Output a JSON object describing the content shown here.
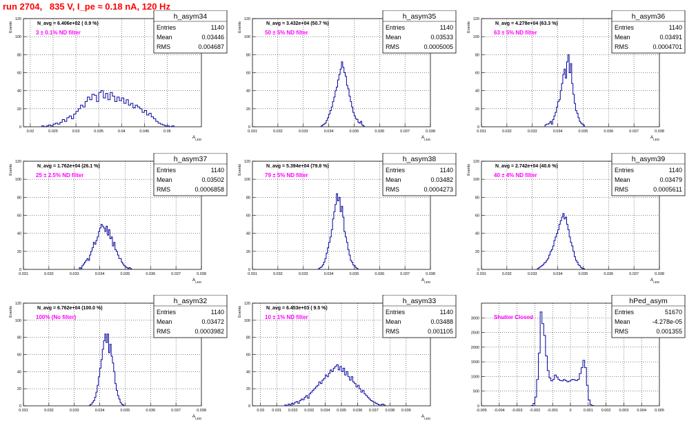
{
  "canvas_title": "run 2704,   835 V, I_pe ≈ 0.18 nA, 120 Hz",
  "chart_data": [
    {
      "type": "histogram",
      "name": "h_asym34",
      "stats": {
        "entries": "1140",
        "mean": "0.03446",
        "rms": "0.004687"
      },
      "stats_labels": [
        "Entries",
        "Mean",
        "RMS"
      ],
      "header": "N_avg = 6.406e+02 ( 0.9 %)",
      "annotation": "3 ± 0.1% ND filter",
      "xlabel": "A_LED",
      "ylabel": "Events",
      "xlim": [
        0.0185,
        0.0575
      ],
      "ylim": [
        0,
        120
      ],
      "xticks": [
        0.02,
        0.025,
        0.03,
        0.035,
        0.04,
        0.045,
        0.05
      ],
      "xtick_labels": [
        "0.02",
        "0.025",
        "0.03",
        "0.035",
        "0.04",
        "0.045",
        "0.05"
      ],
      "yticks": [
        0,
        20,
        40,
        60,
        80,
        100,
        120
      ],
      "grid": true,
      "bin_x0": 0.0225,
      "bin_width": 0.0005,
      "counts": [
        1,
        0,
        1,
        2,
        1,
        3,
        4,
        3,
        5,
        8,
        6,
        10,
        12,
        9,
        14,
        17,
        20,
        24,
        22,
        28,
        33,
        30,
        36,
        35,
        28,
        38,
        40,
        32,
        37,
        30,
        38,
        34,
        28,
        33,
        29,
        32,
        26,
        30,
        24,
        26,
        21,
        24,
        22,
        20,
        16,
        18,
        13,
        15,
        11,
        9,
        6,
        4,
        3,
        2,
        1,
        1,
        0,
        1
      ]
    },
    {
      "type": "histogram",
      "name": "h_asym35",
      "stats": {
        "entries": "1140",
        "mean": "0.03533",
        "rms": "0.0005005"
      },
      "stats_labels": [
        "Entries",
        "Mean",
        "RMS"
      ],
      "header": "N_avg = 3.432e+04 (50.7 %)",
      "annotation": "50 ± 5% ND filter",
      "xlabel": "A_LED",
      "ylabel": "Events",
      "xlim": [
        0.031,
        0.038
      ],
      "ylim": [
        0,
        120
      ],
      "xticks": [
        0.031,
        0.032,
        0.033,
        0.034,
        0.035,
        0.036,
        0.037,
        0.038
      ],
      "xtick_labels": [
        "0.031",
        "0.032",
        "0.033",
        "0.034",
        "0.035",
        "0.036",
        "0.037",
        "0.038"
      ],
      "yticks": [
        0,
        20,
        40,
        60,
        80,
        100,
        120
      ],
      "grid": true,
      "bin_x0": 0.0337,
      "bin_width": 5e-05,
      "counts": [
        1,
        2,
        3,
        4,
        7,
        10,
        14,
        18,
        22,
        28,
        33,
        40,
        44,
        52,
        58,
        64,
        72,
        66,
        60,
        56,
        46,
        42,
        34,
        28,
        22,
        16,
        12,
        9,
        8,
        5,
        4,
        6,
        2,
        1
      ]
    },
    {
      "type": "histogram",
      "name": "h_asym36",
      "stats": {
        "entries": "1140",
        "mean": "0.03491",
        "rms": "0.0004701"
      },
      "stats_labels": [
        "Entries",
        "Mean",
        "RMS"
      ],
      "header": "N_avg = 4.278e+04 (63.3 %)",
      "annotation": "63 ± 5% ND filter",
      "xlabel": "A_LED",
      "ylabel": "Events",
      "xlim": [
        0.031,
        0.038
      ],
      "ylim": [
        0,
        120
      ],
      "xticks": [
        0.031,
        0.032,
        0.033,
        0.034,
        0.035,
        0.036,
        0.037,
        0.038
      ],
      "xtick_labels": [
        "0.031",
        "0.032",
        "0.033",
        "0.034",
        "0.035",
        "0.036",
        "0.037",
        "0.038"
      ],
      "yticks": [
        0,
        20,
        40,
        60,
        80,
        100,
        120
      ],
      "grid": true,
      "bin_x0": 0.0335,
      "bin_width": 5e-05,
      "counts": [
        2,
        3,
        3,
        4,
        6,
        3,
        8,
        12,
        16,
        22,
        28,
        30,
        40,
        48,
        58,
        64,
        54,
        72,
        80,
        60,
        70,
        48,
        36,
        26,
        18,
        15,
        10,
        6,
        4,
        3,
        2
      ]
    },
    {
      "type": "histogram",
      "name": "h_asym37",
      "stats": {
        "entries": "1140",
        "mean": "0.03502",
        "rms": "0.0006858"
      },
      "stats_labels": [
        "Entries",
        "Mean",
        "RMS"
      ],
      "header": "N_avg = 1.762e+04 (26.1 %)",
      "annotation": "25 ± 2.5% ND filter",
      "xlabel": "A_LED",
      "ylabel": "Events",
      "xlim": [
        0.031,
        0.038
      ],
      "ylim": [
        0,
        120
      ],
      "xticks": [
        0.031,
        0.032,
        0.033,
        0.034,
        0.035,
        0.036,
        0.037,
        0.038
      ],
      "xtick_labels": [
        "0.031",
        "0.032",
        "0.033",
        "0.034",
        "0.035",
        "0.036",
        "0.037",
        "0.038"
      ],
      "yticks": [
        0,
        20,
        40,
        60,
        80,
        100,
        120
      ],
      "grid": true,
      "bin_x0": 0.0332,
      "bin_width": 5e-05,
      "counts": [
        2,
        1,
        4,
        6,
        8,
        10,
        12,
        10,
        16,
        20,
        24,
        30,
        28,
        32,
        36,
        42,
        46,
        50,
        48,
        46,
        42,
        48,
        38,
        44,
        34,
        36,
        26,
        30,
        22,
        20,
        16,
        12,
        12,
        8,
        6,
        4,
        3,
        2,
        1,
        2,
        1
      ]
    },
    {
      "type": "histogram",
      "name": "h_asym38",
      "stats": {
        "entries": "1140",
        "mean": "0.03482",
        "rms": "0.0004273"
      },
      "stats_labels": [
        "Entries",
        "Mean",
        "RMS"
      ],
      "header": "N_avg = 5.394e+04 (79.8 %)",
      "annotation": "79 ± 5% ND filter",
      "xlabel": "A_LED",
      "ylabel": "Events",
      "xlim": [
        0.031,
        0.038
      ],
      "ylim": [
        0,
        120
      ],
      "xticks": [
        0.031,
        0.032,
        0.033,
        0.034,
        0.035,
        0.036,
        0.037,
        0.038
      ],
      "xtick_labels": [
        "0.031",
        "0.032",
        "0.033",
        "0.034",
        "0.035",
        "0.036",
        "0.037",
        "0.038"
      ],
      "yticks": [
        0,
        20,
        40,
        60,
        80,
        100,
        120
      ],
      "grid": true,
      "bin_x0": 0.0336,
      "bin_width": 5e-05,
      "counts": [
        1,
        2,
        3,
        5,
        8,
        12,
        18,
        24,
        30,
        36,
        44,
        56,
        64,
        72,
        84,
        76,
        80,
        64,
        70,
        58,
        42,
        36,
        30,
        22,
        16,
        10,
        8,
        5,
        4,
        2,
        1
      ]
    },
    {
      "type": "histogram",
      "name": "h_asym39",
      "stats": {
        "entries": "1140",
        "mean": "0.03479",
        "rms": "0.0005611"
      },
      "stats_labels": [
        "Entries",
        "Mean",
        "RMS"
      ],
      "header": "N_avg = 2.742e+04 (40.6 %)",
      "annotation": "40 ± 4% ND filter",
      "xlabel": "A_LED",
      "ylabel": "Events",
      "xlim": [
        0.031,
        0.038
      ],
      "ylim": [
        0,
        120
      ],
      "xticks": [
        0.031,
        0.032,
        0.033,
        0.034,
        0.035,
        0.036,
        0.037,
        0.038
      ],
      "xtick_labels": [
        "0.031",
        "0.032",
        "0.033",
        "0.034",
        "0.035",
        "0.036",
        "0.037",
        "0.038"
      ],
      "yticks": [
        0,
        20,
        40,
        60,
        80,
        100,
        120
      ],
      "grid": true,
      "bin_x0": 0.0332,
      "bin_width": 5e-05,
      "counts": [
        1,
        2,
        3,
        4,
        5,
        7,
        8,
        10,
        12,
        16,
        20,
        22,
        26,
        32,
        36,
        40,
        44,
        50,
        54,
        58,
        62,
        56,
        58,
        50,
        44,
        36,
        30,
        26,
        20,
        14,
        10,
        8,
        5,
        4,
        2,
        1,
        1
      ]
    },
    {
      "type": "histogram",
      "name": "h_asym32",
      "stats": {
        "entries": "1140",
        "mean": "0.03472",
        "rms": "0.0003982"
      },
      "stats_labels": [
        "Entries",
        "Mean",
        "RMS"
      ],
      "header": "N_avg = 6.762e+04 (100.0 %)",
      "annotation": "100% (No filter)",
      "xlabel": "A_LED",
      "ylabel": "Events",
      "xlim": [
        0.031,
        0.038
      ],
      "ylim": [
        0,
        120
      ],
      "xticks": [
        0.031,
        0.032,
        0.033,
        0.034,
        0.035,
        0.036,
        0.037,
        0.038
      ],
      "xtick_labels": [
        "0.031",
        "0.032",
        "0.033",
        "0.034",
        "0.035",
        "0.036",
        "0.037",
        "0.038"
      ],
      "yticks": [
        0,
        20,
        40,
        60,
        80,
        100,
        120
      ],
      "grid": true,
      "bin_x0": 0.0336,
      "bin_width": 5e-05,
      "counts": [
        1,
        2,
        4,
        6,
        10,
        16,
        24,
        34,
        44,
        54,
        66,
        76,
        84,
        74,
        84,
        62,
        72,
        58,
        50,
        40,
        26,
        18,
        12,
        8,
        4,
        2,
        1
      ]
    },
    {
      "type": "histogram",
      "name": "h_asym33",
      "stats": {
        "entries": "1140",
        "mean": "0.03488",
        "rms": "0.001105"
      },
      "stats_labels": [
        "Entries",
        "Mean",
        "RMS"
      ],
      "header": "N_avg = 6.453e+03 ( 9.5 %)",
      "annotation": "10 ± 1% ND filter",
      "xlabel": "A_LED",
      "ylabel": "Events",
      "xlim": [
        0.0295,
        0.0405
      ],
      "ylim": [
        0,
        120
      ],
      "xticks": [
        0.03,
        0.031,
        0.032,
        0.033,
        0.034,
        0.035,
        0.036,
        0.037,
        0.038,
        0.039
      ],
      "xtick_labels": [
        "0.03",
        "0.031",
        "0.032",
        "0.033",
        "0.034",
        "0.035",
        "0.036",
        "0.037",
        "0.038",
        "0.039"
      ],
      "yticks": [
        0,
        20,
        40,
        60,
        80,
        100,
        120
      ],
      "grid": true,
      "bin_x0": 0.0315,
      "bin_width": 0.0001,
      "counts": [
        1,
        0,
        2,
        1,
        3,
        2,
        4,
        5,
        3,
        6,
        8,
        7,
        10,
        12,
        9,
        14,
        16,
        18,
        20,
        22,
        24,
        28,
        26,
        30,
        32,
        36,
        34,
        38,
        42,
        40,
        44,
        46,
        48,
        42,
        46,
        40,
        44,
        36,
        40,
        34,
        30,
        34,
        28,
        26,
        22,
        24,
        20,
        16,
        18,
        14,
        12,
        10,
        8,
        6,
        5,
        4,
        3,
        2,
        1,
        1,
        2,
        1
      ]
    },
    {
      "type": "histogram",
      "name": "hPed_asym",
      "stats": {
        "entries": "51670",
        "mean": "-4.278e-05",
        "rms": "0.001355"
      },
      "stats_labels": [
        "Entries",
        "Mean",
        "RMS"
      ],
      "header": "",
      "annotation": "Shutter Closed",
      "xlabel": "",
      "ylabel": "",
      "xlim": [
        -0.005,
        0.005
      ],
      "ylim": [
        0,
        3500
      ],
      "xticks": [
        -0.005,
        -0.004,
        -0.003,
        -0.002,
        -0.001,
        0,
        0.001,
        0.002,
        0.003,
        0.004,
        0.005
      ],
      "xtick_labels": [
        "-0.005",
        "-0.004",
        "-0.003",
        "-0.002",
        "-0.001",
        "0",
        "0.001",
        "0.002",
        "0.003",
        "0.004",
        "0.005"
      ],
      "yticks": [
        0,
        500,
        1000,
        1500,
        2000,
        2500,
        3000
      ],
      "grid": true,
      "bin_x0": -0.0022,
      "bin_width": 0.0001,
      "counts": [
        10,
        80,
        300,
        900,
        1800,
        3200,
        2800,
        2400,
        1700,
        1200,
        950,
        850,
        900,
        1050,
        980,
        900,
        860,
        850,
        900,
        860,
        820,
        840,
        880,
        900,
        880,
        860,
        900,
        1100,
        1300,
        1550,
        1300,
        700,
        200,
        40,
        10
      ]
    }
  ]
}
